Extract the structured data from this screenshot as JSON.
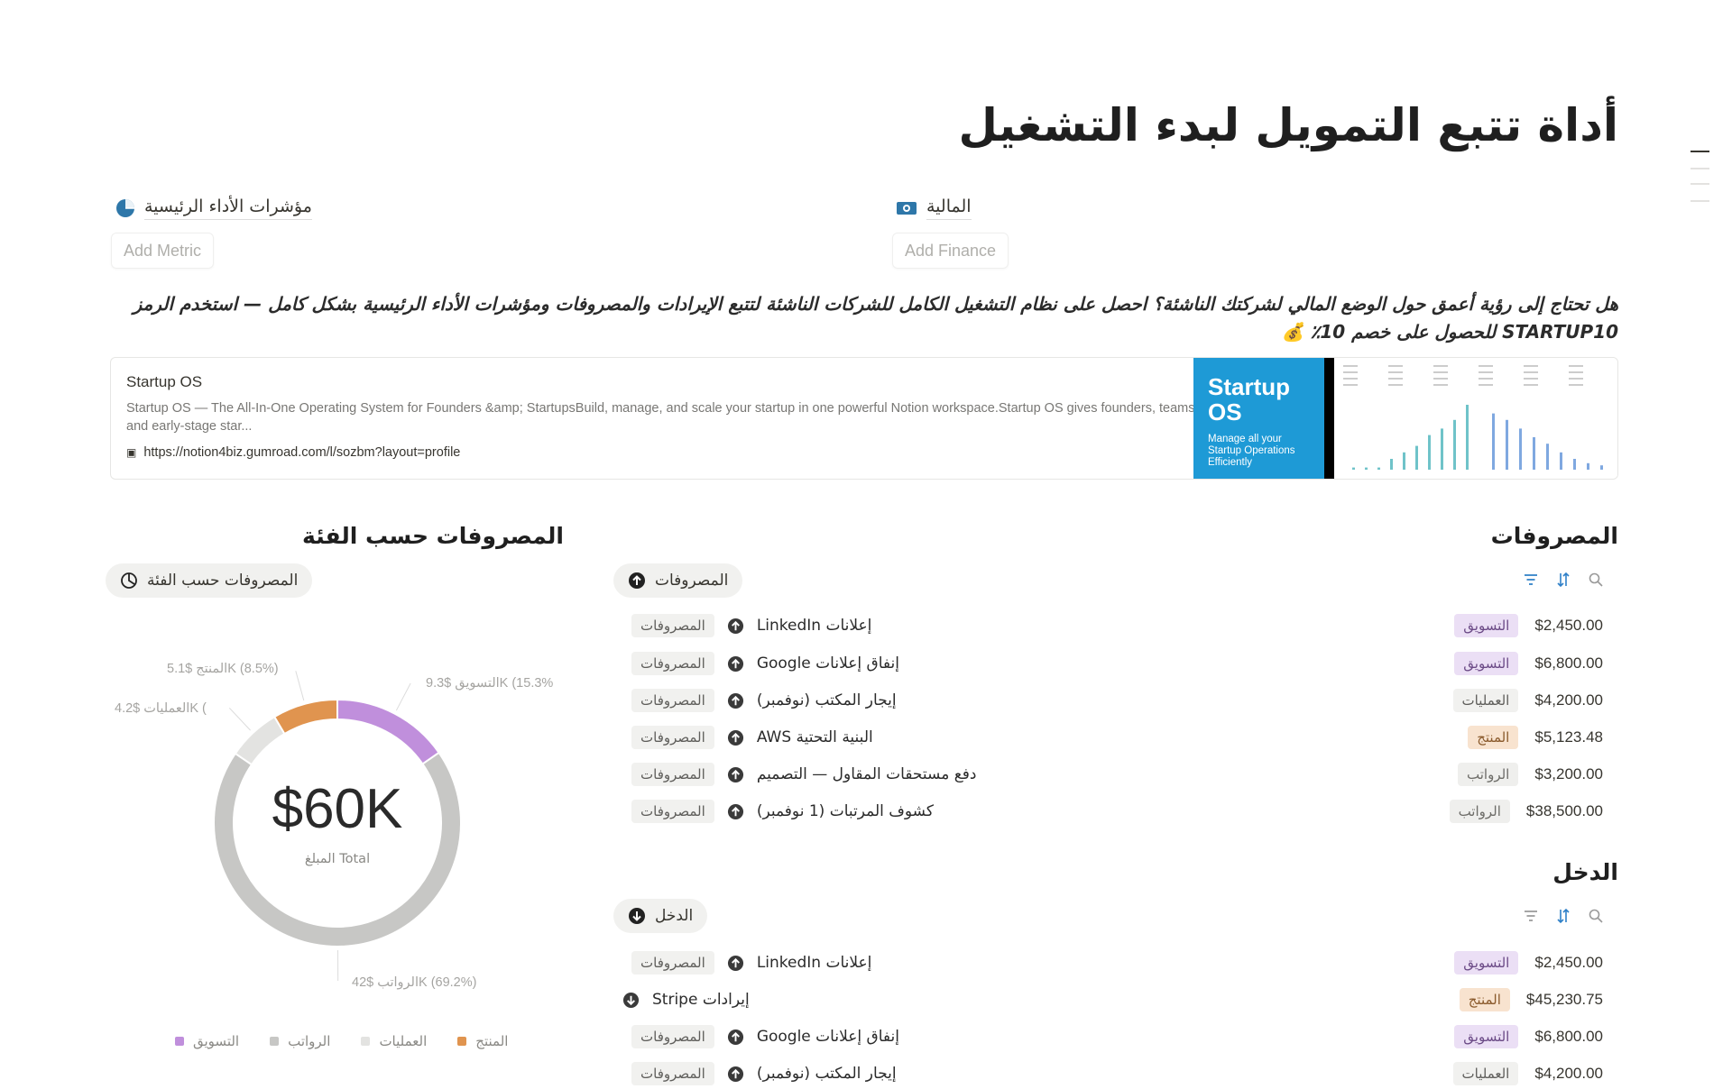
{
  "page": {
    "title": "أداة تتبع التمويل لبدء التشغيل"
  },
  "links": [
    {
      "label": "مؤشرات الأداء الرئيسية",
      "icon": "pie-chart-icon",
      "button": "Add Metric"
    },
    {
      "label": "المالية",
      "icon": "money-icon",
      "button": "Add Finance"
    }
  ],
  "promo": {
    "text": "هل تحتاج إلى رؤية أعمق حول الوضع المالي لشركتك الناشئة؟ احصل على نظام التشغيل الكامل للشركات الناشئة لتتبع الإيرادات والمصروفات ومؤشرات الأداء الرئيسية بشكل كامل — استخدم الرمز STARTUP10 للحصول على خصم 10٪ 💰"
  },
  "bookmark": {
    "title": "Startup OS",
    "description": "Startup OS — The All-In-One Operating System for Founders &amp; StartupsBuild, manage, and scale your startup in one powerful Notion workspace.Startup OS gives founders, teams, and early-stage star...",
    "url": "https://notion4biz.gumroad.com/l/sozbm?layout=profile",
    "thumb_title": "Startup OS",
    "thumb_sub": "Manage all your Startup Operations Efficiently"
  },
  "chart_section": {
    "heading": "المصروفات حسب الفئة",
    "view_label": "المصروفات حسب الفئة"
  },
  "chart_data": {
    "type": "pie",
    "variant": "donut",
    "center_value": "$60K",
    "center_label": "المبلغ Total",
    "slices": [
      {
        "name": "التسويق",
        "value": 9250,
        "label": "التسويق $9.3K (15.3%",
        "color": "#c08fdc"
      },
      {
        "name": "الرواتب",
        "value": 41700,
        "label": "الرواتب $42K (69.2%)",
        "color": "#c7c7c5"
      },
      {
        "name": "العمليات",
        "value": 4200,
        "label": "العمليات $4.2K (",
        "color": "#e3e3e1"
      },
      {
        "name": "المنتج",
        "value": 5123.48,
        "label": "المنتج $5.1K (8.5%)",
        "color": "#e0944f"
      }
    ],
    "legend": [
      "التسويق",
      "الرواتب",
      "العمليات",
      "المنتج"
    ],
    "legend_placement": "bottom"
  },
  "expenses": {
    "heading": "المصروفات",
    "view_label": "المصروفات",
    "rows": [
      {
        "name": "إعلانات LinkedIn",
        "type": "المصروفات",
        "category": "التسويق",
        "amount": "$2,450.00"
      },
      {
        "name": "إنفاق إعلانات Google",
        "type": "المصروفات",
        "category": "التسويق",
        "amount": "$6,800.00"
      },
      {
        "name": "إيجار المكتب (نوفمبر)",
        "type": "المصروفات",
        "category": "العمليات",
        "amount": "$4,200.00"
      },
      {
        "name": "البنية التحتية AWS",
        "type": "المصروفات",
        "category": "المنتج",
        "amount": "$5,123.48"
      },
      {
        "name": "دفع مستحقات المقاول — التصميم",
        "type": "المصروفات",
        "category": "الرواتب",
        "amount": "$3,200.00"
      },
      {
        "name": "كشوف المرتبات (1 نوفمبر)",
        "type": "المصروفات",
        "category": "الرواتب",
        "amount": "$38,500.00"
      }
    ]
  },
  "income": {
    "heading": "الدخل",
    "view_label": "الدخل",
    "rows": [
      {
        "name": "إعلانات LinkedIn",
        "type": "المصروفات",
        "category": "التسويق",
        "amount": "$2,450.00"
      },
      {
        "name": "إيرادات Stripe",
        "type": "",
        "category": "المنتج",
        "amount": "$45,230.75",
        "direction": "down"
      },
      {
        "name": "إنفاق إعلانات Google",
        "type": "المصروفات",
        "category": "التسويق",
        "amount": "$6,800.00"
      },
      {
        "name": "إيجار المكتب (نوفمبر)",
        "type": "المصروفات",
        "category": "العمليات",
        "amount": "$4,200.00"
      }
    ]
  },
  "category_colors": {
    "التسويق": {
      "bg": "#ebdff5",
      "fg": "#6b4a86"
    },
    "العمليات": {
      "bg": "#f1f1ef",
      "fg": "#5f5e5b"
    },
    "المنتج": {
      "bg": "#f8e3cf",
      "fg": "#8a5a2c"
    },
    "الرواتب": {
      "bg": "#efefed",
      "fg": "#6d6c68"
    }
  },
  "accent": "#2f80c8"
}
